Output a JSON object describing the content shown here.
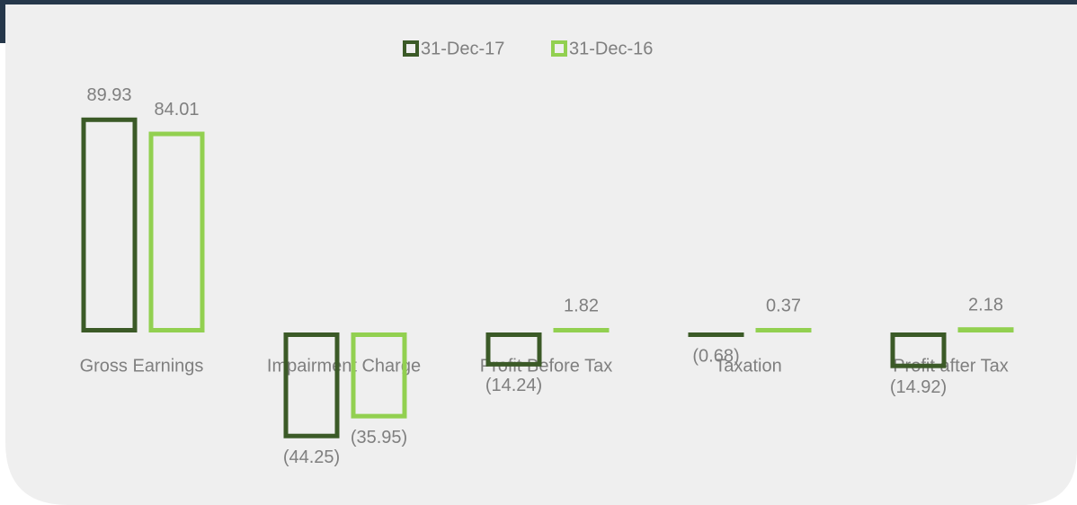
{
  "chart_data": {
    "type": "bar",
    "categories": [
      "Gross Earnings",
      "Impairment Charge",
      "Profit Before Tax",
      "Taxation",
      "Profit after Tax"
    ],
    "series": [
      {
        "name": "31-Dec-17",
        "color": "#3b5a27",
        "values": [
          89.93,
          -44.25,
          -14.24,
          -0.68,
          -14.92
        ],
        "value_labels": [
          "89.93",
          "(44.25)",
          "(14.24)",
          "(0.68)",
          "(14.92)"
        ]
      },
      {
        "name": "31-Dec-16",
        "color": "#92d050",
        "values": [
          84.01,
          -35.95,
          1.82,
          0.37,
          2.18
        ],
        "value_labels": [
          "84.01",
          "(35.95)",
          "1.82",
          "0.37",
          "2.18"
        ]
      }
    ],
    "legend": "top"
  }
}
